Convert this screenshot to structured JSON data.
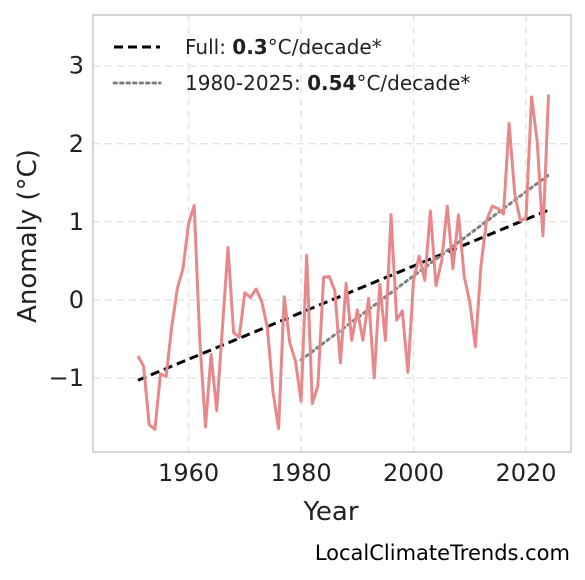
{
  "chart_data": {
    "type": "line",
    "xlabel": "Year",
    "ylabel": "Anomaly (°C)",
    "xlim": [
      1943,
      2028
    ],
    "ylim": [
      -1.95,
      3.65
    ],
    "x_ticks": [
      1960,
      1980,
      2000,
      2020
    ],
    "y_ticks": [
      -1,
      0,
      1,
      2,
      3
    ],
    "y_tick_labels": [
      "−1",
      "0",
      "1",
      "2",
      "3"
    ],
    "grid": true,
    "legend_position": "top-left",
    "colors": {
      "series": "#e8888b",
      "full_trend": "#000000",
      "recent_trend": "#808080",
      "grid": "#e4e4e4",
      "frame": "#c8c8c8"
    },
    "series": [
      {
        "x": [
          1951,
          1952,
          1953,
          1954,
          1955,
          1956,
          1957,
          1958,
          1959,
          1960,
          1961,
          1962,
          1963,
          1964,
          1965,
          1966,
          1967,
          1968,
          1969,
          1970,
          1971,
          1972,
          1973,
          1974,
          1975,
          1976,
          1977,
          1978,
          1979,
          1980,
          1981,
          1982,
          1983,
          1984,
          1985,
          1986,
          1987,
          1988,
          1989,
          1990,
          1991,
          1992,
          1993,
          1994,
          1995,
          1996,
          1997,
          1998,
          1999,
          2000,
          2001,
          2002,
          2003,
          2004,
          2005,
          2006,
          2007,
          2008,
          2009,
          2010,
          2011,
          2012,
          2013,
          2014,
          2015,
          2016,
          2017,
          2018,
          2019,
          2020,
          2021,
          2022,
          2023,
          2024
        ],
        "values": [
          -0.72,
          -0.85,
          -1.6,
          -1.66,
          -0.95,
          -0.98,
          -0.35,
          0.15,
          0.4,
          0.98,
          1.21,
          -0.52,
          -1.63,
          -0.7,
          -1.42,
          -0.38,
          0.67,
          -0.42,
          -0.48,
          0.09,
          0.03,
          0.14,
          -0.02,
          -0.35,
          -1.18,
          -1.65,
          0.04,
          -0.55,
          -0.78,
          -1.3,
          0.57,
          -1.33,
          -1.1,
          0.29,
          0.3,
          0.12,
          -0.81,
          0.21,
          -0.52,
          -0.13,
          -0.52,
          0.02,
          -1.0,
          0.2,
          -0.52,
          1.09,
          -0.26,
          -0.14,
          -0.93,
          0.25,
          0.56,
          0.25,
          1.14,
          0.18,
          0.5,
          1.2,
          0.4,
          1.09,
          0.3,
          -0.03,
          -0.6,
          0.44,
          1.02,
          1.2,
          1.17,
          1.1,
          2.26,
          1.35,
          1.01,
          1.05,
          2.6,
          2.02,
          0.82,
          2.63
        ]
      }
    ],
    "trends": [
      {
        "label_prefix": "Full: ",
        "value": "0.3",
        "label_suffix": "°C/decade*",
        "x": [
          1951,
          2024
        ],
        "y": [
          -1.03,
          1.15
        ],
        "style": "dashed"
      },
      {
        "label_prefix": "1980-2025: ",
        "value": "0.54",
        "label_suffix": "°C/decade*",
        "x": [
          1980,
          2024
        ],
        "y": [
          -0.77,
          1.6
        ],
        "style": "dotted"
      }
    ]
  },
  "credit": "LocalClimateTrends.com"
}
